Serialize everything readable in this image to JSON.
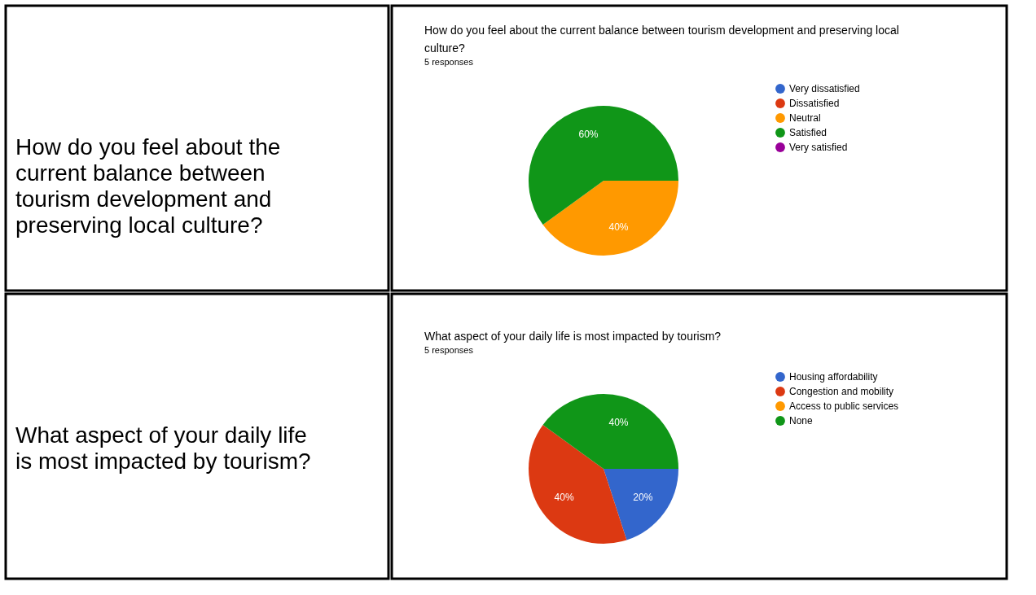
{
  "chart_data": [
    {
      "type": "other",
      "title": "How do you feel about the current balance between tourism development and preserving local culture?"
    },
    {
      "type": "pie",
      "title": "How do you feel about the current balance between tourism development and preserving local culture?",
      "subtitle": "5 responses",
      "categories": [
        "Very dissatisfied",
        "Dissatisfied",
        "Neutral",
        "Satisfied",
        "Very satisfied"
      ],
      "values": [
        0,
        0,
        40,
        60,
        0
      ],
      "colors": [
        "#3366cc",
        "#dc3912",
        "#ff9900",
        "#109618",
        "#990099"
      ],
      "value_labels": [
        null,
        null,
        "40%",
        "60%",
        null
      ],
      "legend": "right"
    },
    {
      "type": "other",
      "title": "What aspect of your daily life is most impacted by tourism?"
    },
    {
      "type": "pie",
      "title": "What aspect of your daily life is most impacted by tourism?",
      "subtitle": "5 responses",
      "categories": [
        "Housing affordability",
        "Congestion and mobility",
        "Access to public services",
        "None"
      ],
      "values": [
        20,
        40,
        0,
        40
      ],
      "colors": [
        "#3366cc",
        "#dc3912",
        "#ff9900",
        "#109618"
      ],
      "value_labels": [
        "20%",
        "40%",
        null,
        "40%"
      ],
      "legend": "right"
    }
  ]
}
